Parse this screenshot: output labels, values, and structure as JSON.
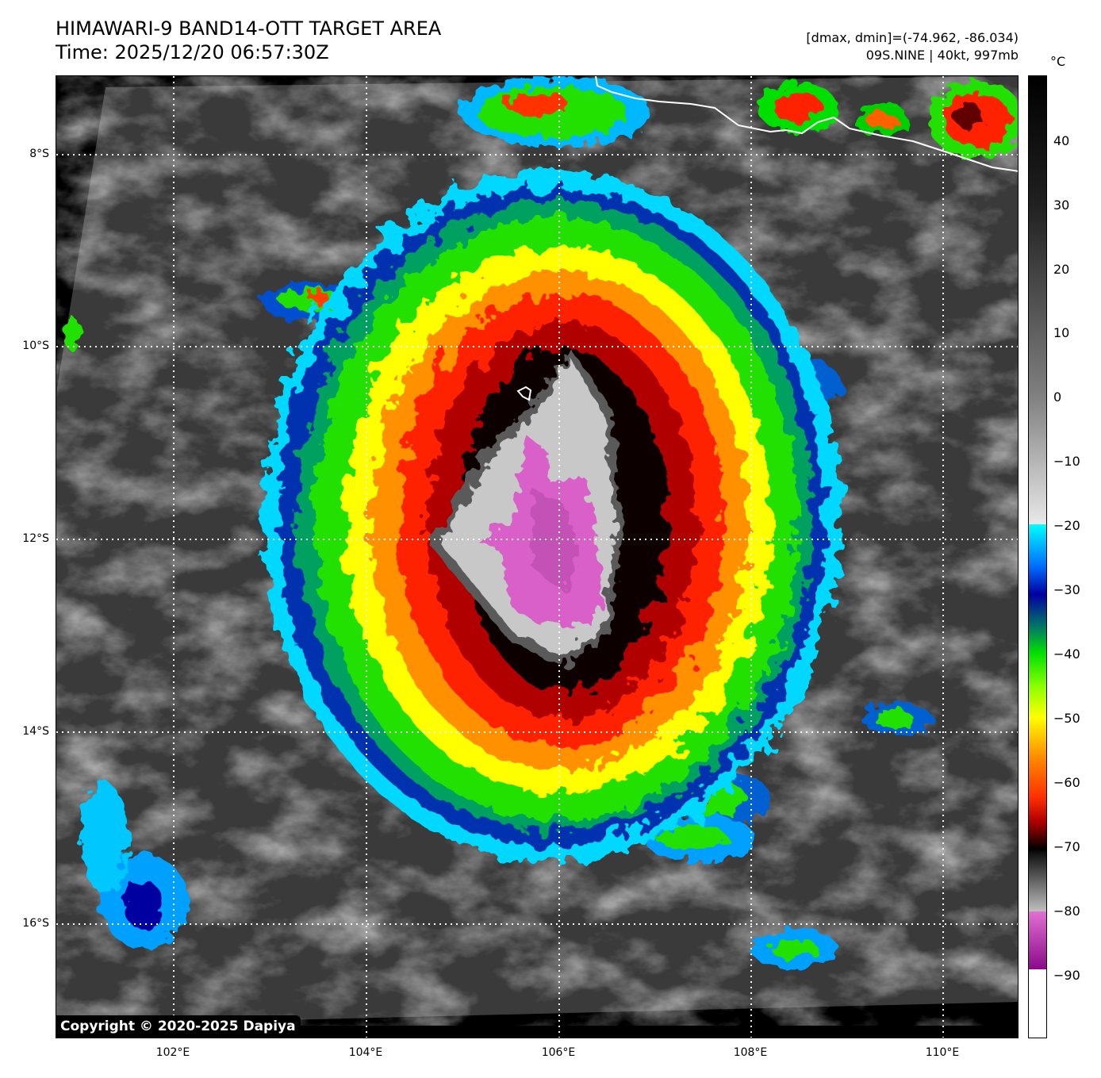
{
  "header": {
    "title": "HIMAWARI-9 BAND14-OTT TARGET AREA",
    "time": "Time: 2025/12/20 06:57:30Z",
    "range": "[dmax, dmin]=(-74.962, -86.034)",
    "storm": "09S.NINE | 40kt, 997mb"
  },
  "map": {
    "lat_labels": [
      "8°S",
      "10°S",
      "12°S",
      "14°S",
      "16°S"
    ],
    "lon_labels": [
      "102°E",
      "104°E",
      "106°E",
      "108°E",
      "110°E"
    ]
  },
  "colorbar": {
    "unit": "°C",
    "ticks": [
      "40",
      "30",
      "20",
      "10",
      "0",
      "−10",
      "−20",
      "−30",
      "−40",
      "−50",
      "−60",
      "−70",
      "−80",
      "−90"
    ]
  },
  "footer": {
    "copyright": "Copyright © 2020-2025 Dapiya"
  },
  "colors": {
    "cold_core": "#d860c8",
    "eye_gray": "#c8c8c8",
    "ring_red": "#e00000",
    "ring_orange": "#ff8c00",
    "ring_yellow": "#ffff00",
    "ring_green": "#22e000",
    "ring_blue": "#0040c0",
    "ring_cyan": "#00e0ff",
    "coastline": "#ffffff"
  }
}
